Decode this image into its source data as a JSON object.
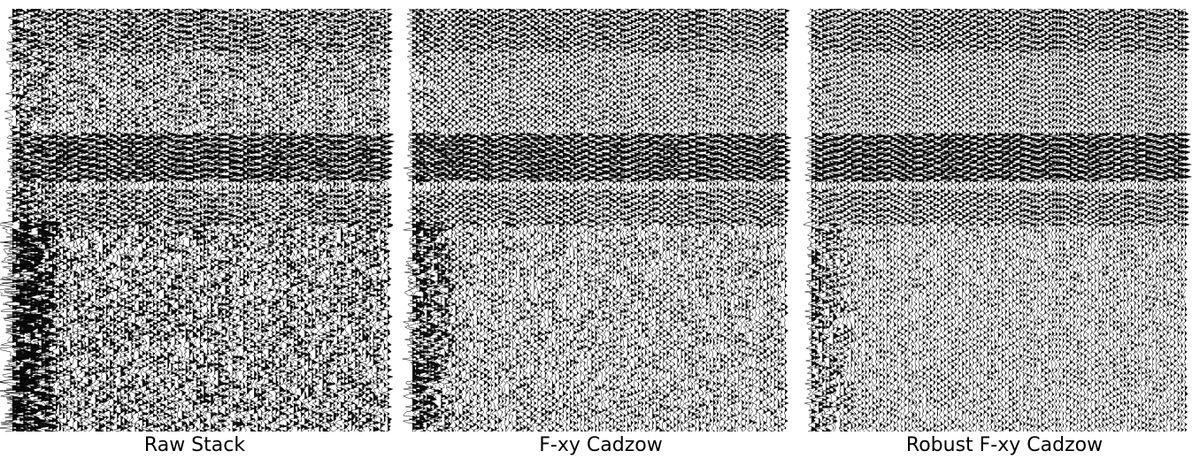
{
  "panels": [
    {
      "caption": "Raw Stack"
    },
    {
      "caption": "F-xy Cadzow"
    },
    {
      "caption": "Robust F-xy Cadzow"
    }
  ]
}
